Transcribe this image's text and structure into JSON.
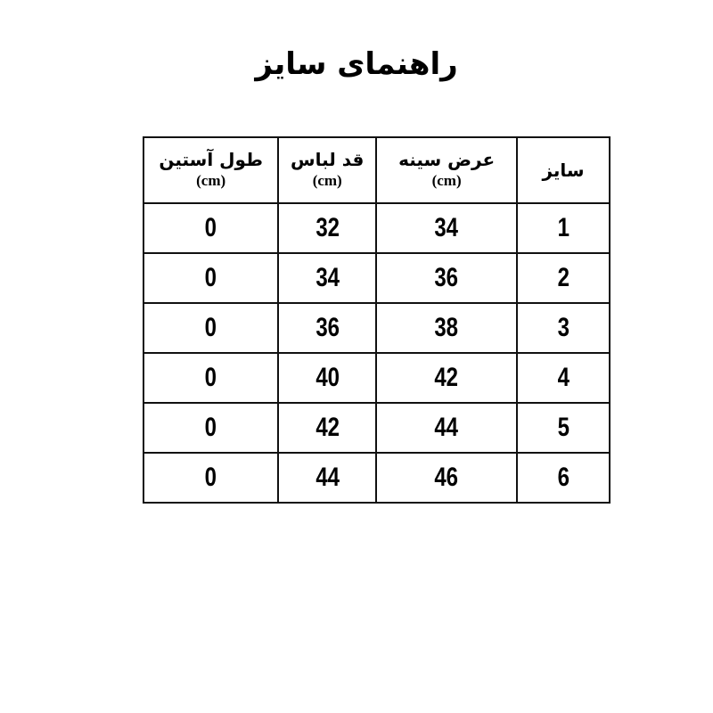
{
  "title": "راهنمای سایز",
  "table": {
    "headers": [
      {
        "label": "سایز",
        "unit": ""
      },
      {
        "label": "عرض سینه",
        "unit": "(cm)"
      },
      {
        "label": "قد لباس",
        "unit": "(cm)"
      },
      {
        "label": "طول آستین",
        "unit": "(cm)"
      }
    ],
    "rows": [
      [
        "1",
        "34",
        "32",
        "0"
      ],
      [
        "2",
        "36",
        "34",
        "0"
      ],
      [
        "3",
        "38",
        "36",
        "0"
      ],
      [
        "4",
        "42",
        "40",
        "0"
      ],
      [
        "5",
        "44",
        "42",
        "0"
      ],
      [
        "6",
        "46",
        "44",
        "0"
      ]
    ]
  }
}
